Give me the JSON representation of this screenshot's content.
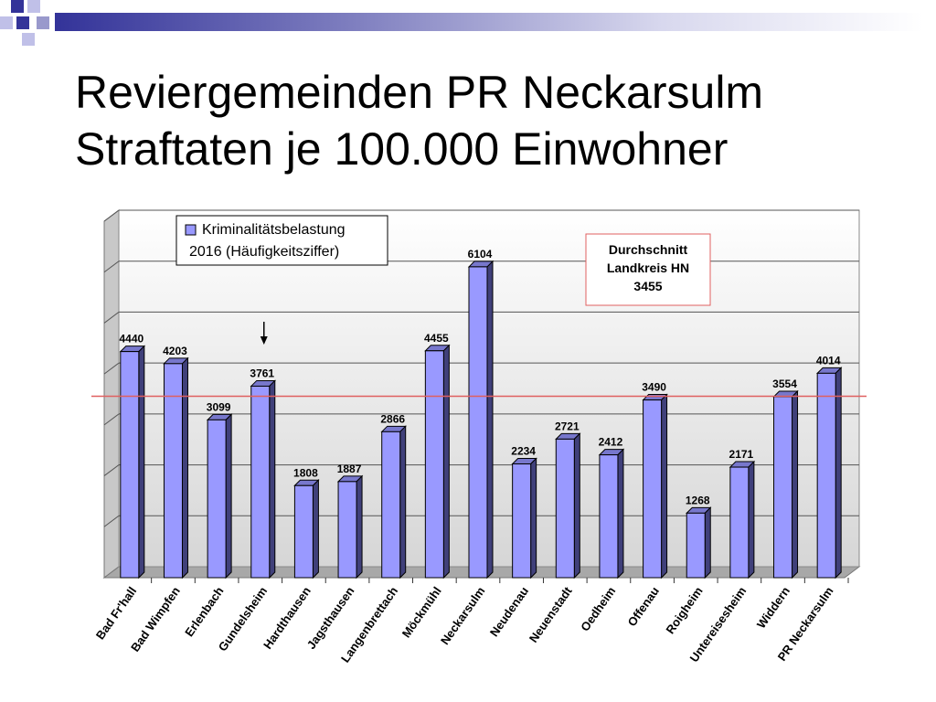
{
  "slide": {
    "title_line1": "Reviergemeinden PR Neckarsulm",
    "title_line2": "Straftaten je 100.000 Einwohner"
  },
  "colors": {
    "bar_front": "#9999ff",
    "bar_side": "#40407a",
    "bar_top": "#7777cc",
    "average_line": "#e06060",
    "callout_border": "#e06060",
    "title_bar": "#333399"
  },
  "chart_data": {
    "type": "bar",
    "categories": [
      "Bad Fr'hall",
      "Bad Wimpfen",
      "Erlenbach",
      "Gundelsheim",
      "Hardthausen",
      "Jagsthausen",
      "Langenbrettach",
      "Möckmühl",
      "Neckarsulm",
      "Neudenau",
      "Neuenstadt",
      "Oedheim",
      "Offenau",
      "Roigheim",
      "Untereisesheim",
      "Widdern",
      "PR Neckarsulm"
    ],
    "series": [
      {
        "name": "Kriminalitätsbelastung 2016 (Häufigkeitsziffer)",
        "values": [
          4440,
          4203,
          3099,
          3761,
          1808,
          1887,
          2866,
          4455,
          6104,
          2234,
          2721,
          2412,
          3490,
          1268,
          2171,
          3554,
          4014
        ]
      }
    ],
    "data_labels": [
      "4440",
      "4203",
      "3099",
      "3761",
      "1808",
      "1887",
      "2866",
      "4455",
      "6104",
      "2234",
      "2721",
      "2412",
      "3490",
      "1268",
      "2171",
      "3554",
      "4014"
    ],
    "ylim": [
      0,
      7000
    ],
    "grid": true,
    "legend": {
      "position": "top-left",
      "line1": "Kriminalitätsbelastung",
      "line2": "2016 (Häufigkeitsziffer)"
    },
    "reference_line": {
      "value": 3455,
      "label_line1": "Durchschnitt",
      "label_line2": "Landkreis HN",
      "label_line3": "3455"
    },
    "marker_arrow_category": "Gundelsheim"
  }
}
